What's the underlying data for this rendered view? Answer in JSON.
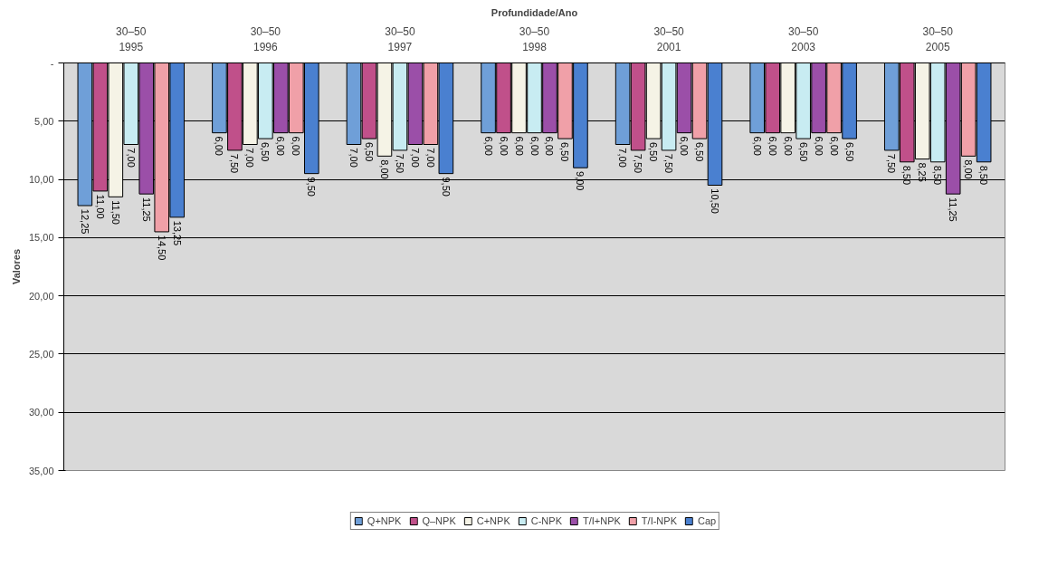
{
  "chart_data": {
    "type": "bar",
    "title": "Profundidade/Ano",
    "ylabel": "Valores",
    "categories": [
      "30–50\n1995",
      "30–50\n1996",
      "30–50\n1997",
      "30–50\n1998",
      "30–50\n2001",
      "30–50\n2003",
      "30–50\n2005"
    ],
    "series": [
      {
        "name": "Q+NPK",
        "color": "#6f9fd8",
        "values": [
          12.25,
          6.0,
          7.0,
          6.0,
          7.0,
          6.0,
          7.5
        ],
        "value_labels": [
          "12,25",
          "6,00",
          "7,00",
          "6,00",
          "7,00",
          "6,00",
          "7,50"
        ]
      },
      {
        "name": "Q–NPK",
        "color": "#c0508a",
        "values": [
          11.0,
          7.5,
          6.5,
          6.0,
          7.5,
          6.0,
          8.5
        ],
        "value_labels": [
          "11,00",
          "7,50",
          "6,50",
          "6,00",
          "7,50",
          "6,00",
          "8,50"
        ]
      },
      {
        "name": "C+NPK",
        "color": "#f5f3e6",
        "values": [
          11.5,
          7.0,
          8.0,
          6.0,
          6.5,
          6.0,
          8.25
        ],
        "value_labels": [
          "11,50",
          "7,00",
          "8,00",
          "6,00",
          "6,50",
          "6,00",
          "8,25"
        ]
      },
      {
        "name": "C-NPK",
        "color": "#c8ecf2",
        "values": [
          7.0,
          6.5,
          7.5,
          6.0,
          7.5,
          6.5,
          8.5
        ],
        "value_labels": [
          "7,00",
          "6,50",
          "7,50",
          "6,00",
          "7,50",
          "6,50",
          "8,50"
        ]
      },
      {
        "name": "T/I+NPK",
        "color": "#9b4fa8",
        "values": [
          11.25,
          6.0,
          7.0,
          6.0,
          6.0,
          6.0,
          11.25
        ],
        "value_labels": [
          "11,25",
          "6,00",
          "7,00",
          "6,00",
          "6,00",
          "6,00",
          "11,25"
        ]
      },
      {
        "name": "T/I-NPK",
        "color": "#f0a0a8",
        "values": [
          14.5,
          6.0,
          7.0,
          6.5,
          6.5,
          6.0,
          8.0
        ],
        "value_labels": [
          "14,50",
          "6,00",
          "7,00",
          "6,50",
          "6,50",
          "6,00",
          "8,00"
        ]
      },
      {
        "name": "Cap",
        "color": "#4a80d0",
        "values": [
          13.25,
          9.5,
          9.5,
          9.0,
          10.5,
          6.5,
          8.5
        ],
        "value_labels": [
          "13,25",
          "9,50",
          "9,50",
          "9,00",
          "10,50",
          "6,50",
          "8,50"
        ]
      }
    ],
    "ylim": [
      35,
      0
    ],
    "yticks": [
      {
        "value": 0,
        "label": "-"
      },
      {
        "value": 5,
        "label": "5,00"
      },
      {
        "value": 10,
        "label": "10,00"
      },
      {
        "value": 15,
        "label": "15,00"
      },
      {
        "value": 20,
        "label": "20,00"
      },
      {
        "value": 25,
        "label": "25,00"
      },
      {
        "value": 30,
        "label": "30,00"
      },
      {
        "value": 35,
        "label": "35,00"
      }
    ],
    "grid": "y",
    "legend": "bottom"
  }
}
